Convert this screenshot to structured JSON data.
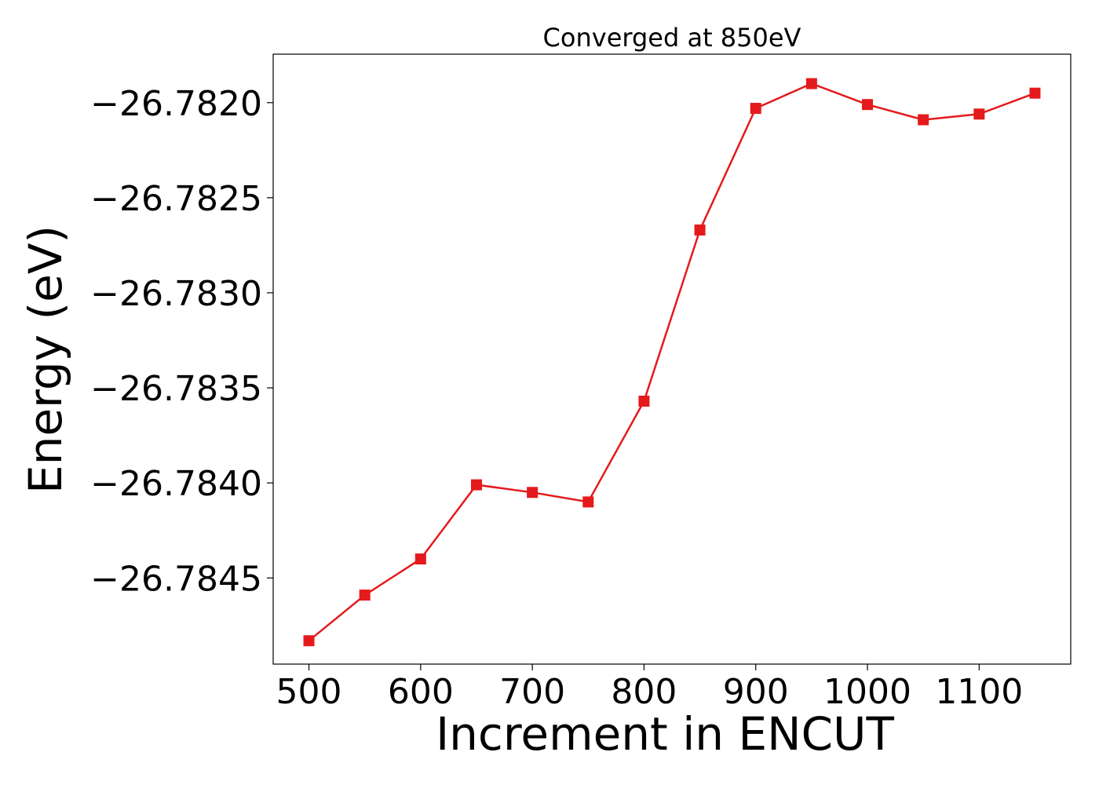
{
  "chart_data": {
    "type": "line",
    "title": "Converged at 850eV",
    "xlabel": "Increment in ENCUT",
    "ylabel": "Energy (eV)",
    "x": [
      500,
      550,
      600,
      650,
      700,
      750,
      800,
      850,
      900,
      950,
      1000,
      1050,
      1100,
      1150
    ],
    "series": [
      {
        "values": [
          -26.78483,
          -26.78459,
          -26.7844,
          -26.78401,
          -26.78405,
          -26.7841,
          -26.78357,
          -26.78267,
          -26.78203,
          -26.7819,
          -26.78201,
          -26.78209,
          -26.78206,
          -26.78195
        ],
        "color": "#e41a1c",
        "marker": "square"
      }
    ],
    "xlim": [
      468,
      1182
    ],
    "ylim": [
      -26.784953,
      -26.781745
    ],
    "xticks": [
      500,
      600,
      700,
      800,
      900,
      1000,
      1100
    ],
    "yticks": [
      -26.7845,
      -26.784,
      -26.7835,
      -26.783,
      -26.7825,
      -26.782
    ],
    "xtick_labels": [
      "500",
      "600",
      "700",
      "800",
      "900",
      "1000",
      "1100"
    ],
    "ytick_labels": [
      "−26.7845",
      "−26.7840",
      "−26.7835",
      "−26.7830",
      "−26.7825",
      "−26.7820"
    ],
    "grid": false,
    "legend": "none"
  }
}
